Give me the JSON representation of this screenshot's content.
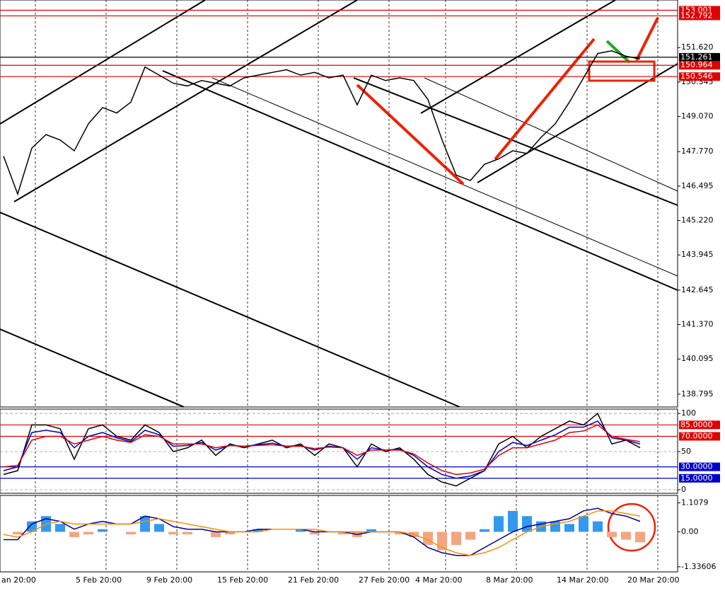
{
  "chart_data": [
    {
      "type": "line",
      "categories": [
        "an 20:00",
        null,
        null,
        null,
        null,
        "5 Feb 20:00",
        null,
        null,
        null,
        null,
        "9 Feb 20:00",
        null,
        null,
        null,
        null,
        "15 Feb 20:00",
        null,
        null,
        null,
        null,
        "21 Feb 20:00",
        null,
        null,
        null,
        null,
        "27 Feb 20:00",
        null,
        null,
        null,
        "4 Mar 20:00",
        null,
        null,
        null,
        null,
        "8 Mar 20:00",
        null,
        null,
        null,
        null,
        "14 Mar 20:00",
        null,
        null,
        null,
        null,
        "20 Mar 20:00",
        null
      ],
      "series": [
        {
          "color": "#000000",
          "values": [
            147.6,
            146.2,
            147.9,
            148.4,
            148.2,
            147.8,
            148.8,
            149.4,
            149.2,
            149.6,
            150.9,
            150.6,
            150.3,
            150.2,
            150.4,
            150.3,
            150.2,
            150.5,
            150.6,
            150.7,
            150.8,
            150.6,
            150.7,
            150.5,
            150.6,
            149.5,
            150.6,
            150.4,
            150.5,
            150.4,
            149.7,
            148.2,
            146.9,
            146.7,
            147.3,
            147.5,
            147.8,
            147.7,
            148.3,
            148.8,
            149.6,
            150.5,
            151.4,
            151.5,
            151.3,
            151.2
          ]
        }
      ],
      "ylim": [
        138.32,
        153.38
      ],
      "yticks": [
        {
          "value": 151.62,
          "label": "151.620"
        },
        150.345,
        {
          "value": 149.07,
          "label": "149.070"
        },
        {
          "value": 147.77,
          "label": "147.770"
        },
        146.495,
        {
          "value": 145.22,
          "label": "145.220"
        },
        143.945,
        142.645,
        {
          "value": 141.37,
          "label": "141.370"
        },
        140.095,
        138.795
      ],
      "levels": [
        {
          "value": 153.001,
          "color": "#e00000"
        },
        {
          "value": 152.792,
          "color": "#e00000"
        },
        {
          "value": 151.261,
          "color": "#000000"
        },
        {
          "value": 150.964,
          "color": "#e00000"
        },
        {
          "value": 150.546,
          "color": "#e00000"
        }
      ]
    },
    {
      "type": "line",
      "series": [
        {
          "color": "#000000",
          "values": [
            20,
            25,
            85,
            85,
            80,
            40,
            80,
            85,
            70,
            65,
            85,
            75,
            50,
            55,
            65,
            45,
            60,
            55,
            60,
            65,
            55,
            60,
            45,
            60,
            55,
            30,
            60,
            50,
            55,
            40,
            20,
            10,
            5,
            15,
            25,
            60,
            70,
            55,
            70,
            80,
            90,
            85,
            100,
            60,
            65,
            55
          ]
        },
        {
          "color": "#0000cc",
          "values": [
            25,
            30,
            75,
            78,
            75,
            55,
            70,
            75,
            68,
            63,
            78,
            72,
            57,
            58,
            62,
            52,
            58,
            57,
            59,
            61,
            57,
            58,
            52,
            57,
            55,
            40,
            55,
            52,
            53,
            45,
            30,
            20,
            15,
            18,
            25,
            50,
            62,
            58,
            65,
            72,
            82,
            82,
            90,
            68,
            65,
            60
          ]
        },
        {
          "color": "#e00000",
          "values": [
            30,
            32,
            65,
            70,
            70,
            60,
            65,
            70,
            65,
            62,
            72,
            70,
            60,
            60,
            60,
            55,
            58,
            57,
            58,
            59,
            57,
            57,
            54,
            56,
            55,
            45,
            52,
            52,
            52,
            47,
            35,
            25,
            20,
            22,
            27,
            45,
            55,
            55,
            60,
            65,
            75,
            77,
            85,
            70,
            66,
            63
          ]
        }
      ],
      "ylim": [
        -4.7,
        105.7
      ],
      "yticks": [
        100,
        50,
        0
      ],
      "grid": true,
      "levels": [
        {
          "value": 85,
          "label": "85.0000",
          "color": "#e00000"
        },
        {
          "value": 70,
          "label": "70.0000",
          "color": "#e00000"
        },
        {
          "value": 30,
          "label": "30.0000",
          "color": "#0000cc"
        },
        {
          "value": 15,
          "label": "15.0000",
          "color": "#0000cc"
        }
      ]
    },
    {
      "type": "combo",
      "series": [
        {
          "type": "bar",
          "color": "#3399ee",
          "negative_color": "#f4a582",
          "values": [
            0,
            -0.1,
            0.4,
            0.6,
            0.3,
            -0.2,
            -0.1,
            0.1,
            0,
            -0.1,
            0.6,
            0.3,
            -0.1,
            -0.1,
            0,
            -0.2,
            -0.1,
            0,
            0.1,
            0,
            0,
            0.1,
            -0.1,
            0,
            -0.1,
            -0.2,
            0.1,
            0,
            -0.1,
            -0.2,
            -0.5,
            -0.7,
            -0.5,
            -0.3,
            0.1,
            0.6,
            0.8,
            0.6,
            0.4,
            0.4,
            0.3,
            0.6,
            0.4,
            -0.2,
            -0.3,
            -0.4
          ]
        },
        {
          "type": "line",
          "color": "#000099",
          "values": [
            -0.3,
            -0.3,
            0.3,
            0.5,
            0.4,
            0.1,
            0.3,
            0.4,
            0.3,
            0.3,
            0.6,
            0.5,
            0.2,
            0.1,
            0.1,
            0,
            0,
            0,
            0.1,
            0.1,
            0.1,
            0.1,
            0,
            0,
            0,
            -0.1,
            0,
            0,
            0,
            -0.2,
            -0.6,
            -0.8,
            -0.9,
            -0.9,
            -0.6,
            -0.3,
            0,
            0.2,
            0.3,
            0.4,
            0.5,
            0.8,
            0.9,
            0.7,
            0.6,
            0.4
          ]
        },
        {
          "type": "line",
          "color": "#ff8c00",
          "values": [
            -0.1,
            -0.2,
            0,
            0.3,
            0.4,
            0.3,
            0.3,
            0.3,
            0.3,
            0.3,
            0.4,
            0.5,
            0.4,
            0.3,
            0.2,
            0.1,
            0,
            0,
            0,
            0.1,
            0.1,
            0.1,
            0.1,
            0,
            0,
            0,
            0,
            0,
            0,
            -0.1,
            -0.3,
            -0.6,
            -0.8,
            -0.9,
            -0.8,
            -0.6,
            -0.3,
            0,
            0.2,
            0.3,
            0.4,
            0.6,
            0.8,
            0.8,
            0.7,
            0.6
          ]
        }
      ],
      "ylim": [
        -1.53,
        1.39
      ],
      "yticks": [
        1.1079,
        {
          "value": 0,
          "label": "0.00"
        },
        -1.33606
      ]
    }
  ]
}
